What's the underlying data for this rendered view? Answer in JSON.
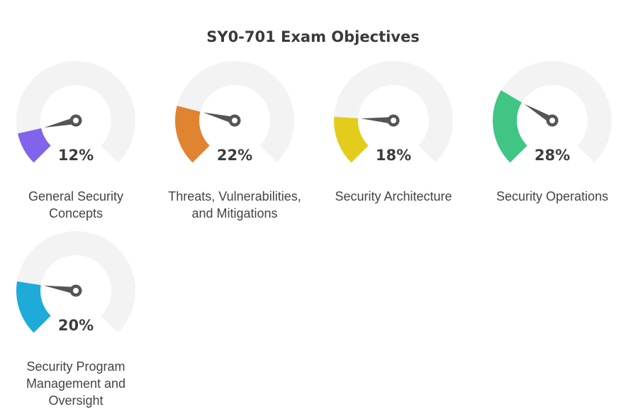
{
  "title": "SY0-701 Exam Objectives",
  "chart_data": {
    "type": "gauge",
    "title": "SY0-701 Exam Objectives",
    "unit": "%",
    "items": [
      {
        "label": "General Security Concepts",
        "value": 12,
        "display": "12%",
        "color": "#8263ec"
      },
      {
        "label": "Threats, Vulnerabilities, and Mitigations",
        "value": 22,
        "display": "22%",
        "color": "#e08432"
      },
      {
        "label": "Security Architecture",
        "value": 18,
        "display": "18%",
        "color": "#e3cc1c"
      },
      {
        "label": "Security Operations",
        "value": 28,
        "display": "28%",
        "color": "#40c584"
      },
      {
        "label": "Security Program Management and Oversight",
        "value": 20,
        "display": "20%",
        "color": "#1eabda"
      }
    ]
  },
  "colors": {
    "track": "#f3f3f3",
    "needle": "#555555",
    "text": "#3d3d3d"
  }
}
